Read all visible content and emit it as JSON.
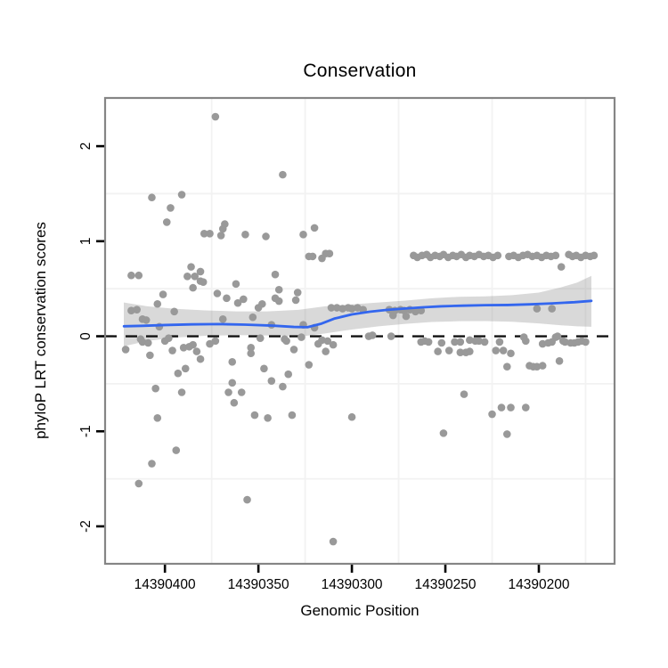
{
  "chart_data": {
    "type": "scatter",
    "title": "Conservation",
    "xlabel": "Genomic Position",
    "ylabel": "phyloP LRT conservation scores",
    "x_reversed": true,
    "xlim": [
      14390432,
      14390159.5
    ],
    "ylim": [
      -2.394,
      2.507
    ],
    "x_ticks": [
      14390400,
      14390350,
      14390300,
      14390250,
      14390200
    ],
    "y_ticks": [
      2,
      1,
      0,
      -1,
      -2
    ],
    "x_minor_gridlines": [
      14390375,
      14390325,
      14390275,
      14390225,
      14390175
    ],
    "y_minor_gridlines": [
      1.5,
      0.5,
      -0.5,
      -1.5
    ],
    "zero_line": {
      "y": 0,
      "style": "dashed"
    },
    "style": {
      "point_color": "#999999",
      "smooth_color": "#3366EE",
      "band_color": "#888888",
      "band_opacity": 0.32,
      "grid_color": "#f2f2f2",
      "border_color": "#858585",
      "zero_line_color": "#111111"
    },
    "points": [
      [
        14390373,
        2.31
      ],
      [
        14390407,
        1.46
      ],
      [
        14390391,
        1.49
      ],
      [
        14390397,
        1.35
      ],
      [
        14390399,
        1.2
      ],
      [
        14390379,
        1.08
      ],
      [
        14390376,
        1.08
      ],
      [
        14390370,
        1.06
      ],
      [
        14390368,
        1.18
      ],
      [
        14390369,
        1.13
      ],
      [
        14390357,
        1.07
      ],
      [
        14390346,
        1.05
      ],
      [
        14390337,
        1.7
      ],
      [
        14390326,
        1.07
      ],
      [
        14390320,
        1.14
      ],
      [
        14390386,
        0.73
      ],
      [
        14390381,
        0.68
      ],
      [
        14390388,
        0.63
      ],
      [
        14390384,
        0.63
      ],
      [
        14390381,
        0.58
      ],
      [
        14390379.5,
        0.57
      ],
      [
        14390418,
        0.64
      ],
      [
        14390414,
        0.64
      ],
      [
        14390385,
        0.51
      ],
      [
        14390362,
        0.55
      ],
      [
        14390401,
        0.44
      ],
      [
        14390372,
        0.45
      ],
      [
        14390367,
        0.4
      ],
      [
        14390361,
        0.35
      ],
      [
        14390358,
        0.39
      ],
      [
        14390404,
        0.34
      ],
      [
        14390395,
        0.26
      ],
      [
        14390418,
        0.27
      ],
      [
        14390415,
        0.28
      ],
      [
        14390412,
        0.18
      ],
      [
        14390410,
        0.17
      ],
      [
        14390403,
        0.1
      ],
      [
        14390350,
        0.3
      ],
      [
        14390348,
        0.34
      ],
      [
        14390369,
        0.18
      ],
      [
        14390353,
        0.2
      ],
      [
        14390343,
        0.12
      ],
      [
        14390323,
        0.84
      ],
      [
        14390321,
        0.84
      ],
      [
        14390316,
        0.82
      ],
      [
        14390314,
        0.87
      ],
      [
        14390312,
        0.87
      ],
      [
        14390341,
        0.65
      ],
      [
        14390339,
        0.49
      ],
      [
        14390329,
        0.46
      ],
      [
        14390330,
        0.38
      ],
      [
        14390339,
        0.37
      ],
      [
        14390341,
        0.4
      ],
      [
        14390326,
        0.12
      ],
      [
        14390320,
        0.09
      ],
      [
        14390311,
        0.3
      ],
      [
        14390308,
        0.3
      ],
      [
        14390305,
        0.29
      ],
      [
        14390302,
        0.3
      ],
      [
        14390300,
        0.29
      ],
      [
        14390297,
        0.3
      ],
      [
        14390294,
        0.28
      ],
      [
        14390280,
        0.28
      ],
      [
        14390277,
        0.27
      ],
      [
        14390274,
        0.28
      ],
      [
        14390272,
        0.27
      ],
      [
        14390269,
        0.28
      ],
      [
        14390266,
        0.26
      ],
      [
        14390263,
        0.27
      ],
      [
        14390278,
        0.22
      ],
      [
        14390271,
        0.21
      ],
      [
        14390291,
        0.0
      ],
      [
        14390289,
        0.01
      ],
      [
        14390279,
        0.0
      ],
      [
        14390267,
        0.85
      ],
      [
        14390265,
        0.83
      ],
      [
        14390262.5,
        0.85
      ],
      [
        14390260,
        0.86
      ],
      [
        14390258,
        0.83
      ],
      [
        14390255.5,
        0.85
      ],
      [
        14390253,
        0.84
      ],
      [
        14390251,
        0.86
      ],
      [
        14390248.5,
        0.83
      ],
      [
        14390246,
        0.85
      ],
      [
        14390244,
        0.84
      ],
      [
        14390241.5,
        0.86
      ],
      [
        14390239,
        0.83
      ],
      [
        14390237,
        0.85
      ],
      [
        14390234.5,
        0.84
      ],
      [
        14390232,
        0.86
      ],
      [
        14390229.5,
        0.84
      ],
      [
        14390227,
        0.85
      ],
      [
        14390224.5,
        0.83
      ],
      [
        14390222,
        0.85
      ],
      [
        14390216,
        0.84
      ],
      [
        14390213.5,
        0.85
      ],
      [
        14390211,
        0.83
      ],
      [
        14390208.5,
        0.85
      ],
      [
        14390206,
        0.86
      ],
      [
        14390203.5,
        0.84
      ],
      [
        14390201,
        0.85
      ],
      [
        14390198.5,
        0.83
      ],
      [
        14390196,
        0.85
      ],
      [
        14390193.5,
        0.84
      ],
      [
        14390191,
        0.85
      ],
      [
        14390184,
        0.86
      ],
      [
        14390182,
        0.84
      ],
      [
        14390180,
        0.85
      ],
      [
        14390177.5,
        0.83
      ],
      [
        14390175,
        0.85
      ],
      [
        14390172.5,
        0.84
      ],
      [
        14390170.5,
        0.85
      ],
      [
        14390188,
        0.73
      ],
      [
        14390335,
        -0.05
      ],
      [
        14390336,
        -0.03
      ],
      [
        14390331,
        -0.14
      ],
      [
        14390327,
        -0.01
      ],
      [
        14390318,
        -0.08
      ],
      [
        14390316,
        -0.04
      ],
      [
        14390313,
        -0.05
      ],
      [
        14390310,
        -0.09
      ],
      [
        14390314,
        -0.16
      ],
      [
        14390323,
        -0.3
      ],
      [
        14390334,
        -0.4
      ],
      [
        14390337,
        -0.53
      ],
      [
        14390332,
        -0.83
      ],
      [
        14390300,
        -0.85
      ],
      [
        14390251,
        -1.02
      ],
      [
        14390310,
        -2.16
      ],
      [
        14390263,
        -0.06
      ],
      [
        14390261,
        -0.05
      ],
      [
        14390259,
        -0.06
      ],
      [
        14390252,
        -0.07
      ],
      [
        14390254,
        -0.16
      ],
      [
        14390248,
        -0.15
      ],
      [
        14390245,
        -0.06
      ],
      [
        14390242,
        -0.06
      ],
      [
        14390237,
        -0.04
      ],
      [
        14390234,
        -0.05
      ],
      [
        14390232,
        -0.05
      ],
      [
        14390229,
        -0.06
      ],
      [
        14390242,
        -0.17
      ],
      [
        14390239,
        -0.17
      ],
      [
        14390237,
        -0.16
      ],
      [
        14390221,
        -0.06
      ],
      [
        14390223,
        -0.15
      ],
      [
        14390219,
        -0.15
      ],
      [
        14390215,
        -0.18
      ],
      [
        14390217,
        -0.32
      ],
      [
        14390208,
        -0.01
      ],
      [
        14390207,
        -0.05
      ],
      [
        14390205,
        -0.31
      ],
      [
        14390203,
        -0.32
      ],
      [
        14390201,
        -0.32
      ],
      [
        14390198,
        -0.31
      ],
      [
        14390189,
        -0.26
      ],
      [
        14390198,
        -0.08
      ],
      [
        14390195,
        -0.07
      ],
      [
        14390193,
        -0.06
      ],
      [
        14390191,
        -0.01
      ],
      [
        14390190,
        0.0
      ],
      [
        14390187,
        -0.05
      ],
      [
        14390186,
        -0.06
      ],
      [
        14390183,
        -0.07
      ],
      [
        14390181,
        -0.07
      ],
      [
        14390179,
        -0.06
      ],
      [
        14390177,
        -0.05
      ],
      [
        14390175,
        -0.06
      ],
      [
        14390240,
        -0.61
      ],
      [
        14390225,
        -0.82
      ],
      [
        14390220,
        -0.75
      ],
      [
        14390215,
        -0.75
      ],
      [
        14390207,
        -0.75
      ],
      [
        14390217,
        -1.03
      ],
      [
        14390201,
        0.29
      ],
      [
        14390193,
        0.29
      ],
      [
        14390421,
        -0.14
      ],
      [
        14390412,
        -0.06
      ],
      [
        14390409,
        -0.07
      ],
      [
        14390413,
        -0.03
      ],
      [
        14390408,
        -0.2
      ],
      [
        14390400,
        -0.05
      ],
      [
        14390398,
        -0.02
      ],
      [
        14390396,
        -0.15
      ],
      [
        14390390,
        -0.12
      ],
      [
        14390387,
        -0.11
      ],
      [
        14390385,
        -0.09
      ],
      [
        14390383,
        -0.16
      ],
      [
        14390381,
        -0.24
      ],
      [
        14390376,
        -0.08
      ],
      [
        14390373,
        -0.05
      ],
      [
        14390393,
        -0.39
      ],
      [
        14390389,
        -0.34
      ],
      [
        14390364,
        -0.27
      ],
      [
        14390347,
        -0.34
      ],
      [
        14390354,
        -0.12
      ],
      [
        14390354,
        -0.18
      ],
      [
        14390349,
        -0.02
      ],
      [
        14390343,
        -0.47
      ],
      [
        14390364,
        -0.49
      ],
      [
        14390366,
        -0.59
      ],
      [
        14390359,
        -0.59
      ],
      [
        14390363,
        -0.7
      ],
      [
        14390405,
        -0.55
      ],
      [
        14390391,
        -0.59
      ],
      [
        14390352,
        -0.83
      ],
      [
        14390345,
        -0.86
      ],
      [
        14390404,
        -0.86
      ],
      [
        14390394,
        -1.2
      ],
      [
        14390407,
        -1.34
      ],
      [
        14390414,
        -1.55
      ],
      [
        14390356,
        -1.72
      ]
    ],
    "smooth_line": [
      [
        14390421.9,
        0.105
      ],
      [
        14390411.9,
        0.11
      ],
      [
        14390400,
        0.118
      ],
      [
        14390385.7,
        0.125
      ],
      [
        14390371.4,
        0.128
      ],
      [
        14390357.1,
        0.122
      ],
      [
        14390342.9,
        0.112
      ],
      [
        14390331.0,
        0.098
      ],
      [
        14390323.8,
        0.095
      ],
      [
        14390316.7,
        0.13
      ],
      [
        14390309.5,
        0.185
      ],
      [
        14390300.0,
        0.23
      ],
      [
        14390290.5,
        0.258
      ],
      [
        14390281.0,
        0.278
      ],
      [
        14390271.4,
        0.292
      ],
      [
        14390261.9,
        0.305
      ],
      [
        14390252.4,
        0.315
      ],
      [
        14390240.5,
        0.322
      ],
      [
        14390228.6,
        0.327
      ],
      [
        14390216.7,
        0.329
      ],
      [
        14390204.8,
        0.336
      ],
      [
        14390192.9,
        0.346
      ],
      [
        14390181.0,
        0.358
      ],
      [
        14390171.9,
        0.372
      ]
    ],
    "confidence_band": [
      [
        14390422.0,
        -0.105,
        0.355
      ],
      [
        14390409.5,
        -0.05,
        0.315
      ],
      [
        14390395.2,
        -0.015,
        0.29
      ],
      [
        14390378.6,
        0.005,
        0.272
      ],
      [
        14390361.9,
        0.012,
        0.262
      ],
      [
        14390345.2,
        0.008,
        0.262
      ],
      [
        14390328.6,
        -0.005,
        0.278
      ],
      [
        14390314.3,
        0.03,
        0.315
      ],
      [
        14390300.0,
        0.07,
        0.335
      ],
      [
        14390285.7,
        0.105,
        0.355
      ],
      [
        14390271.4,
        0.13,
        0.375
      ],
      [
        14390257.1,
        0.15,
        0.4
      ],
      [
        14390242.9,
        0.158,
        0.415
      ],
      [
        14390228.6,
        0.16,
        0.42
      ],
      [
        14390214.3,
        0.152,
        0.432
      ],
      [
        14390200.0,
        0.135,
        0.46
      ],
      [
        14390188.1,
        0.115,
        0.515
      ],
      [
        14390179.5,
        0.105,
        0.565
      ],
      [
        14390171.9,
        0.1,
        0.635
      ]
    ]
  }
}
